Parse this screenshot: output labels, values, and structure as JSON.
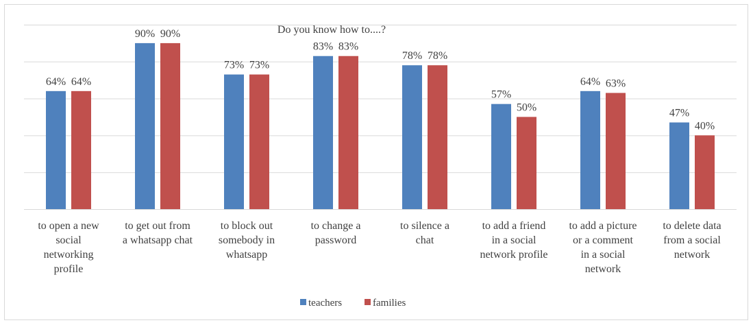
{
  "chart_data": {
    "type": "bar",
    "title": "Do you know how to....?",
    "xlabel": "",
    "ylabel": "",
    "ylim": [
      0,
      100
    ],
    "grid": true,
    "legend_position": "bottom",
    "categories": [
      [
        "to open a new",
        "social",
        "networking",
        "profile"
      ],
      [
        "to get out from",
        "a whatsapp chat"
      ],
      [
        "to block out",
        "somebody in",
        "whatsapp"
      ],
      [
        "to change a",
        "password"
      ],
      [
        "to silence a",
        "chat"
      ],
      [
        "to add a friend",
        "in a social",
        "network profile"
      ],
      [
        "to add a picture",
        "or a comment",
        "in a social",
        "network"
      ],
      [
        "to delete data",
        "from a social",
        "network"
      ]
    ],
    "series": [
      {
        "name": "teachers",
        "color": "#4f81bd",
        "values": [
          64,
          90,
          73,
          83,
          78,
          57,
          64,
          47
        ],
        "labels": [
          "64%",
          "90%",
          "73%",
          "83%",
          "78%",
          "57%",
          "64%",
          "47%"
        ]
      },
      {
        "name": "families",
        "color": "#c0504d",
        "values": [
          64,
          90,
          73,
          83,
          78,
          50,
          63,
          40
        ],
        "labels": [
          "64%",
          "90%",
          "73%",
          "83%",
          "78%",
          "50%",
          "63%",
          "40%"
        ]
      }
    ]
  }
}
